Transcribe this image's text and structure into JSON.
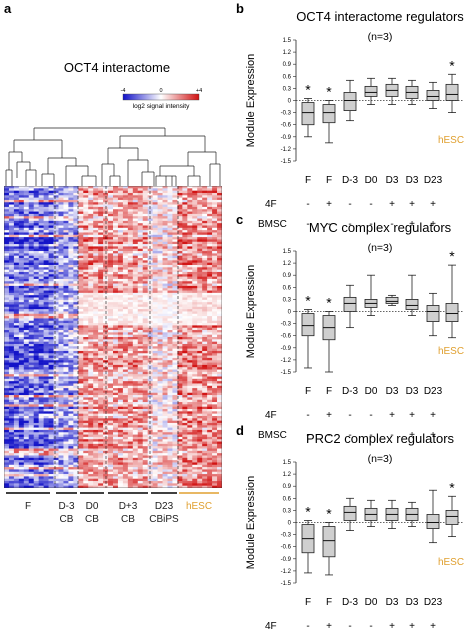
{
  "panel_a": {
    "letter": "a",
    "title": "OCT4 interactome",
    "legend": {
      "min": "-4",
      "mid": "0",
      "max": "+4",
      "label": "log2 signal intensity",
      "colors": [
        "#1010c8",
        "#ffffff",
        "#d01010"
      ]
    },
    "groups": [
      {
        "l1": "F",
        "l2": "",
        "color": "#000000"
      },
      {
        "l1": "D-3",
        "l2": "CB",
        "color": "#000000"
      },
      {
        "l1": "D0",
        "l2": "CB",
        "color": "#000000"
      },
      {
        "l1": "D+3",
        "l2": "CB",
        "color": "#000000"
      },
      {
        "l1": "D23",
        "l2": "CBiPS",
        "color": "#000000"
      },
      {
        "l1": "hESC",
        "l2": "",
        "color": "#e0a030"
      }
    ]
  },
  "treatment_rows": {
    "row1_label": "4F",
    "row2_label": "BMSC",
    "row1": [
      "-",
      "+",
      "-",
      "-",
      "+",
      "+",
      "+",
      "+"
    ],
    "row2": [
      "-",
      "-",
      "-",
      "-",
      "-",
      "+",
      "+",
      "+"
    ]
  },
  "chart_data": [
    {
      "type": "box",
      "panel": "b",
      "title": "OCT4 interactome regulators",
      "subtitle": "(n=3)",
      "ylabel": "Module Expression",
      "ylim": [
        -1.5,
        1.5
      ],
      "yticks": [
        "1.5",
        "1.2",
        "0.9",
        "0.6",
        "0.3",
        "0",
        "-0.3",
        "-0.6",
        "-0.9",
        "-1.2",
        "-1.5"
      ],
      "categories": [
        "F",
        "F",
        "D-3",
        "D0",
        "D3",
        "D3",
        "D23",
        ""
      ],
      "ref_label": "hESC",
      "boxes": [
        {
          "min": -0.9,
          "q1": -0.6,
          "median": -0.3,
          "q3": -0.05,
          "max": 0.05,
          "star": true
        },
        {
          "min": -1.05,
          "q1": -0.55,
          "median": -0.3,
          "q3": -0.1,
          "max": 0.0,
          "star": true
        },
        {
          "min": -0.5,
          "q1": -0.25,
          "median": 0.0,
          "q3": 0.2,
          "max": 0.5,
          "star": false
        },
        {
          "min": -0.1,
          "q1": 0.1,
          "median": 0.2,
          "q3": 0.35,
          "max": 0.55,
          "star": false
        },
        {
          "min": -0.1,
          "q1": 0.1,
          "median": 0.25,
          "q3": 0.4,
          "max": 0.55,
          "star": false
        },
        {
          "min": -0.1,
          "q1": 0.05,
          "median": 0.2,
          "q3": 0.35,
          "max": 0.5,
          "star": false
        },
        {
          "min": -0.2,
          "q1": 0.0,
          "median": 0.1,
          "q3": 0.25,
          "max": 0.45,
          "star": false
        },
        {
          "min": -0.3,
          "q1": 0.0,
          "median": 0.15,
          "q3": 0.4,
          "max": 0.65,
          "star": true
        }
      ]
    },
    {
      "type": "box",
      "panel": "c",
      "title": "MYC complex regulators",
      "subtitle": "(n=3)",
      "ylabel": "Module Expression",
      "ylim": [
        -1.5,
        1.5
      ],
      "yticks": [
        "1.5",
        "1.2",
        "0.9",
        "0.6",
        "0.3",
        "0",
        "-0.3",
        "-0.6",
        "-0.9",
        "-1.2",
        "-1.5"
      ],
      "categories": [
        "F",
        "F",
        "D-3",
        "D0",
        "D3",
        "D3",
        "D23",
        ""
      ],
      "ref_label": "hESC",
      "boxes": [
        {
          "min": -1.4,
          "q1": -0.6,
          "median": -0.35,
          "q3": -0.05,
          "max": 0.05,
          "star": true
        },
        {
          "min": -1.5,
          "q1": -0.7,
          "median": -0.4,
          "q3": -0.1,
          "max": 0.0,
          "star": true
        },
        {
          "min": -0.4,
          "q1": 0.0,
          "median": 0.2,
          "q3": 0.35,
          "max": 0.65,
          "star": false
        },
        {
          "min": -0.1,
          "q1": 0.1,
          "median": 0.2,
          "q3": 0.3,
          "max": 0.9,
          "star": false
        },
        {
          "min": 0.15,
          "q1": 0.2,
          "median": 0.25,
          "q3": 0.35,
          "max": 0.4,
          "star": false
        },
        {
          "min": -0.1,
          "q1": 0.05,
          "median": 0.15,
          "q3": 0.3,
          "max": 0.9,
          "star": false
        },
        {
          "min": -0.6,
          "q1": -0.25,
          "median": 0.0,
          "q3": 0.15,
          "max": 0.45,
          "star": false
        },
        {
          "min": -0.65,
          "q1": -0.25,
          "median": -0.05,
          "q3": 0.2,
          "max": 1.15,
          "star": true
        }
      ]
    },
    {
      "type": "box",
      "panel": "d",
      "title": "PRC2 complex regulators",
      "subtitle": "(n=3)",
      "ylabel": "Module Expression",
      "ylim": [
        -1.5,
        1.5
      ],
      "yticks": [
        "1.5",
        "1.2",
        "0.9",
        "0.6",
        "0.3",
        "0",
        "-0.3",
        "-0.6",
        "-0.9",
        "-1.2",
        "-1.5"
      ],
      "categories": [
        "F",
        "F",
        "D-3",
        "D0",
        "D3",
        "D3",
        "D23",
        ""
      ],
      "ref_label": "hESC",
      "boxes": [
        {
          "min": -1.25,
          "q1": -0.75,
          "median": -0.4,
          "q3": -0.05,
          "max": 0.05,
          "star": true
        },
        {
          "min": -1.3,
          "q1": -0.85,
          "median": -0.45,
          "q3": -0.1,
          "max": 0.0,
          "star": true
        },
        {
          "min": -0.2,
          "q1": 0.05,
          "median": 0.25,
          "q3": 0.4,
          "max": 0.6,
          "star": false
        },
        {
          "min": -0.1,
          "q1": 0.05,
          "median": 0.2,
          "q3": 0.35,
          "max": 0.55,
          "star": false
        },
        {
          "min": -0.15,
          "q1": 0.05,
          "median": 0.2,
          "q3": 0.35,
          "max": 0.55,
          "star": false
        },
        {
          "min": -0.1,
          "q1": 0.05,
          "median": 0.2,
          "q3": 0.35,
          "max": 0.5,
          "star": false
        },
        {
          "min": -0.5,
          "q1": -0.15,
          "median": 0.0,
          "q3": 0.2,
          "max": 0.8,
          "star": false
        },
        {
          "min": -0.35,
          "q1": -0.05,
          "median": 0.15,
          "q3": 0.3,
          "max": 0.65,
          "star": true
        }
      ]
    }
  ]
}
